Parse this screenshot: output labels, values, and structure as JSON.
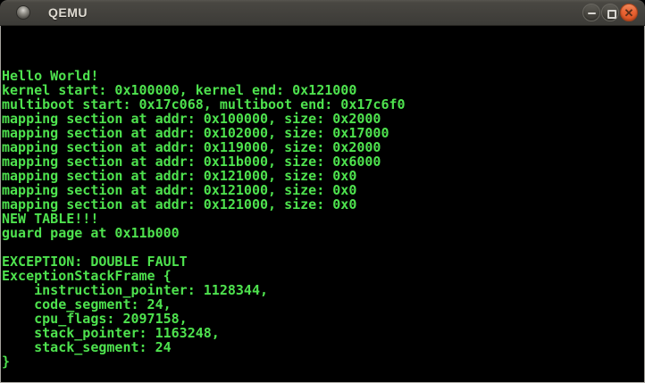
{
  "window": {
    "title": "QEMU",
    "controls": {
      "minimize": "minimize",
      "maximize": "maximize",
      "close": "close",
      "close_glyph": "✕"
    }
  },
  "colors": {
    "terminal_bg": "#000000",
    "terminal_text": "#4ee24e",
    "titlebar_top": "#57554f",
    "titlebar_bottom": "#3c3b37",
    "title_text": "#dfdbd2",
    "close_button_orange": "#ea6434",
    "window_border": "#a5a39d"
  },
  "terminal": {
    "lines": [
      "",
      "",
      "",
      "Hello World!",
      "kernel start: 0x100000, kernel end: 0x121000",
      "multiboot start: 0x17c068, multiboot end: 0x17c6f0",
      "mapping section at addr: 0x100000, size: 0x2000",
      "mapping section at addr: 0x102000, size: 0x17000",
      "mapping section at addr: 0x119000, size: 0x2000",
      "mapping section at addr: 0x11b000, size: 0x6000",
      "mapping section at addr: 0x121000, size: 0x0",
      "mapping section at addr: 0x121000, size: 0x0",
      "mapping section at addr: 0x121000, size: 0x0",
      "NEW TABLE!!!",
      "guard page at 0x11b000",
      "",
      "EXCEPTION: DOUBLE FAULT",
      "ExceptionStackFrame {",
      "    instruction_pointer: 1128344,",
      "    code_segment: 24,",
      "    cpu_flags: 2097158,",
      "    stack_pointer: 1163248,",
      "    stack_segment: 24",
      "}",
      ""
    ]
  }
}
